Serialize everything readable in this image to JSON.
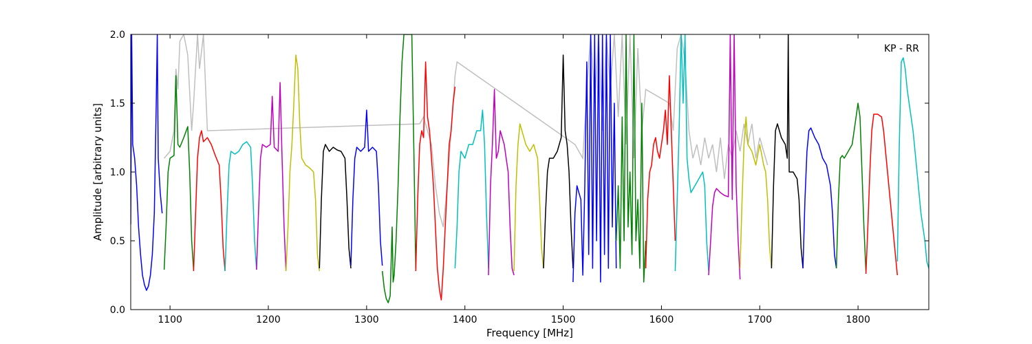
{
  "chart_data": {
    "type": "line",
    "title": "",
    "xlabel": "Frequency [MHz]",
    "ylabel": "Amplitude [arbitrary units]",
    "annotation": "KP - RR",
    "xlim": [
      1060,
      1872
    ],
    "ylim": [
      0.0,
      2.0
    ],
    "xticks": [
      1100,
      1200,
      1300,
      1400,
      1500,
      1600,
      1700,
      1800
    ],
    "yticks": [
      0.0,
      0.5,
      1.0,
      1.5,
      2.0
    ],
    "xtick_labels": [
      "1100",
      "1200",
      "1300",
      "1400",
      "1500",
      "1600",
      "1700",
      "1800"
    ],
    "ytick_labels": [
      "0.0",
      "0.5",
      "1.0",
      "1.5",
      "2.0"
    ],
    "grid": false,
    "background_series": {
      "color": "#bfbfbf",
      "x": [
        1094,
        1100,
        1104,
        1106,
        1108,
        1110,
        1114,
        1118,
        1122,
        1124,
        1128,
        1130,
        1134,
        1138,
        1354,
        1358,
        1362,
        1366,
        1370,
        1374,
        1378,
        1382,
        1386,
        1390,
        1392,
        1512,
        1516,
        1520,
        1524,
        1528,
        1532,
        1536,
        1540,
        1544,
        1548,
        1552,
        1556,
        1560,
        1564,
        1568,
        1572,
        1576,
        1580,
        1584,
        1608,
        1612,
        1616,
        1620,
        1624,
        1628,
        1632,
        1636,
        1640,
        1644,
        1648,
        1652,
        1656,
        1660,
        1664,
        1668,
        1672,
        1676,
        1680,
        1684,
        1688,
        1692,
        1696,
        1700,
        1704,
        1708
      ],
      "y": [
        1.1,
        1.15,
        1.3,
        1.75,
        1.6,
        1.95,
        2.0,
        1.85,
        1.3,
        1.5,
        2.0,
        1.75,
        2.0,
        1.3,
        1.35,
        1.4,
        1.3,
        1.2,
        0.9,
        0.7,
        0.6,
        0.9,
        1.3,
        1.7,
        1.8,
        1.2,
        1.15,
        1.1,
        1.6,
        2.0,
        1.5,
        2.0,
        1.3,
        2.0,
        1.6,
        2.0,
        1.4,
        2.0,
        1.2,
        2.0,
        1.1,
        1.9,
        1.3,
        1.6,
        1.5,
        1.3,
        1.9,
        2.0,
        1.8,
        1.3,
        1.1,
        1.2,
        1.05,
        1.25,
        1.1,
        1.2,
        1.0,
        1.25,
        0.95,
        1.2,
        1.1,
        1.3,
        1.15,
        1.35,
        1.2,
        1.35,
        1.1,
        1.25,
        1.15,
        1.05
      ]
    },
    "series": [
      {
        "color": "#0000ff",
        "x": [
          1060,
          1061,
          1062,
          1064,
          1066,
          1068,
          1070,
          1072,
          1074,
          1076,
          1078,
          1080,
          1082,
          1084,
          1086,
          1087,
          1088,
          1090,
          1092
        ],
        "y": [
          0.62,
          2.0,
          1.2,
          1.1,
          0.9,
          0.6,
          0.4,
          0.25,
          0.18,
          0.14,
          0.17,
          0.25,
          0.4,
          0.7,
          1.5,
          2.0,
          1.1,
          0.85,
          0.7
        ]
      },
      {
        "color": "#008000",
        "x": [
          1094,
          1096,
          1098,
          1100,
          1104,
          1106,
          1108,
          1110,
          1114,
          1118,
          1120,
          1122,
          1124
        ],
        "y": [
          0.29,
          0.6,
          1.0,
          1.1,
          1.12,
          1.7,
          1.2,
          1.18,
          1.25,
          1.33,
          1.0,
          0.5,
          0.29
        ]
      },
      {
        "color": "#ff0000",
        "x": [
          1124,
          1126,
          1128,
          1130,
          1132,
          1134,
          1138,
          1142,
          1146,
          1150,
          1152,
          1154,
          1156
        ],
        "y": [
          0.28,
          0.7,
          1.1,
          1.25,
          1.3,
          1.22,
          1.25,
          1.2,
          1.12,
          1.05,
          0.8,
          0.45,
          0.28
        ]
      },
      {
        "color": "#00bfbf",
        "x": [
          1156,
          1158,
          1160,
          1162,
          1166,
          1170,
          1174,
          1178,
          1182,
          1184,
          1186,
          1188
        ],
        "y": [
          0.28,
          0.7,
          1.05,
          1.15,
          1.13,
          1.15,
          1.2,
          1.22,
          1.18,
          0.9,
          0.5,
          0.29
        ]
      },
      {
        "color": "#bf00bf",
        "x": [
          1188,
          1190,
          1192,
          1194,
          1198,
          1202,
          1204,
          1206,
          1210,
          1212,
          1214,
          1216,
          1218
        ],
        "y": [
          0.29,
          0.7,
          1.1,
          1.2,
          1.18,
          1.2,
          1.55,
          1.18,
          1.15,
          1.65,
          1.1,
          0.6,
          0.28
        ]
      },
      {
        "color": "#bfbf00",
        "x": [
          1218,
          1220,
          1222,
          1224,
          1226,
          1228,
          1230,
          1232,
          1234,
          1238,
          1242,
          1246,
          1248,
          1250,
          1252
        ],
        "y": [
          0.28,
          0.6,
          1.0,
          1.2,
          1.5,
          1.85,
          1.75,
          1.35,
          1.1,
          1.05,
          1.03,
          1.0,
          0.8,
          0.4,
          0.28
        ]
      },
      {
        "color": "#000000",
        "x": [
          1252,
          1254,
          1256,
          1258,
          1262,
          1266,
          1270,
          1274,
          1278,
          1280,
          1282,
          1284
        ],
        "y": [
          0.3,
          0.8,
          1.15,
          1.2,
          1.15,
          1.18,
          1.16,
          1.15,
          1.1,
          0.8,
          0.45,
          0.3
        ]
      },
      {
        "color": "#0000ff",
        "x": [
          1284,
          1286,
          1288,
          1290,
          1294,
          1298,
          1300,
          1302,
          1306,
          1310,
          1312,
          1314,
          1316
        ],
        "y": [
          0.32,
          0.8,
          1.1,
          1.18,
          1.15,
          1.18,
          1.45,
          1.15,
          1.18,
          1.15,
          0.9,
          0.5,
          0.32
        ]
      },
      {
        "color": "#008000",
        "x": [
          1316,
          1318,
          1320,
          1322,
          1324,
          1326,
          1327,
          1328,
          1330,
          1332,
          1334,
          1336,
          1338,
          1340,
          1342,
          1344,
          1346,
          1348,
          1350
        ],
        "y": [
          0.28,
          0.15,
          0.08,
          0.05,
          0.1,
          0.6,
          0.2,
          0.25,
          0.5,
          0.9,
          1.4,
          1.8,
          2.0,
          2.0,
          2.0,
          2.0,
          2.0,
          1.2,
          0.3
        ]
      },
      {
        "color": "#ff0000",
        "x": [
          1350,
          1352,
          1354,
          1356,
          1358,
          1360,
          1362,
          1364,
          1366,
          1368,
          1370,
          1372,
          1374,
          1376,
          1378,
          1380,
          1382,
          1384,
          1386,
          1388,
          1390
        ],
        "y": [
          0.28,
          0.8,
          1.2,
          1.3,
          1.25,
          1.8,
          1.4,
          1.3,
          1.1,
          0.9,
          0.6,
          0.3,
          0.15,
          0.07,
          0.3,
          0.6,
          0.9,
          1.2,
          1.3,
          1.5,
          1.62
        ]
      },
      {
        "color": "#00bfbf",
        "x": [
          1390,
          1392,
          1394,
          1396,
          1400,
          1404,
          1408,
          1412,
          1416,
          1418,
          1420,
          1422,
          1424
        ],
        "y": [
          0.3,
          0.6,
          1.0,
          1.15,
          1.1,
          1.2,
          1.2,
          1.3,
          1.3,
          1.45,
          1.2,
          0.7,
          0.3
        ]
      },
      {
        "color": "#bf00bf",
        "x": [
          1424,
          1426,
          1428,
          1430,
          1432,
          1434,
          1436,
          1438,
          1440,
          1442,
          1444,
          1446,
          1448,
          1450
        ],
        "y": [
          0.25,
          0.9,
          1.2,
          1.6,
          1.1,
          1.15,
          1.3,
          1.25,
          1.2,
          1.1,
          1.0,
          0.6,
          0.3,
          0.25
        ]
      },
      {
        "color": "#bfbf00",
        "x": [
          1450,
          1452,
          1454,
          1456,
          1458,
          1462,
          1466,
          1470,
          1474,
          1476,
          1478,
          1480
        ],
        "y": [
          0.28,
          0.9,
          1.2,
          1.35,
          1.3,
          1.2,
          1.15,
          1.2,
          1.1,
          0.8,
          0.45,
          0.3
        ]
      },
      {
        "color": "#000000",
        "x": [
          1480,
          1482,
          1484,
          1486,
          1490,
          1494,
          1498,
          1500,
          1502,
          1504,
          1506,
          1508,
          1510
        ],
        "y": [
          0.3,
          0.7,
          1.0,
          1.1,
          1.1,
          1.15,
          1.25,
          1.85,
          1.3,
          1.2,
          1.0,
          0.6,
          0.3
        ]
      },
      {
        "color": "#0000ff",
        "x": [
          1510,
          1512,
          1514,
          1516,
          1518,
          1520,
          1522,
          1524,
          1526,
          1528,
          1530,
          1532,
          1534,
          1536,
          1538,
          1540,
          1542,
          1544,
          1546,
          1548,
          1550,
          1552,
          1554
        ],
        "y": [
          0.2,
          0.7,
          0.9,
          0.85,
          0.8,
          0.25,
          0.9,
          1.8,
          0.4,
          2.0,
          0.3,
          2.0,
          0.5,
          2.0,
          0.2,
          2.0,
          0.4,
          2.0,
          0.3,
          2.0,
          0.6,
          1.5,
          0.3
        ]
      },
      {
        "color": "#008000",
        "x": [
          1554,
          1556,
          1558,
          1560,
          1562,
          1564,
          1566,
          1568,
          1570,
          1572,
          1574,
          1576,
          1578,
          1580,
          1582,
          1584
        ],
        "y": [
          0.5,
          0.9,
          0.3,
          1.4,
          0.5,
          2.0,
          0.6,
          1.0,
          0.4,
          2.0,
          0.5,
          0.8,
          0.3,
          1.5,
          0.2,
          0.5
        ]
      },
      {
        "color": "#ff0000",
        "x": [
          1584,
          1586,
          1588,
          1590,
          1592,
          1594,
          1596,
          1598,
          1600,
          1602,
          1604,
          1606,
          1608,
          1610,
          1612,
          1614
        ],
        "y": [
          0.3,
          0.8,
          1.0,
          1.05,
          1.2,
          1.25,
          1.15,
          1.1,
          1.2,
          1.3,
          1.45,
          1.2,
          1.7,
          1.3,
          0.9,
          0.5
        ]
      },
      {
        "color": "#00bfbf",
        "x": [
          1614,
          1616,
          1618,
          1620,
          1622,
          1624,
          1626,
          1628,
          1630,
          1634,
          1638,
          1642,
          1644,
          1646,
          1648
        ],
        "y": [
          0.28,
          0.8,
          1.3,
          2.0,
          1.5,
          2.0,
          1.1,
          0.95,
          0.85,
          0.9,
          0.95,
          1.0,
          0.9,
          0.5,
          0.28
        ]
      },
      {
        "color": "#bf00bf",
        "x": [
          1648,
          1650,
          1652,
          1654,
          1656,
          1660,
          1664,
          1668,
          1670,
          1672,
          1674,
          1676,
          1678,
          1680
        ],
        "y": [
          0.25,
          0.5,
          0.75,
          0.85,
          0.88,
          0.85,
          0.83,
          0.82,
          2.0,
          0.8,
          2.0,
          0.9,
          0.5,
          0.22
        ]
      },
      {
        "color": "#bfbf00",
        "x": [
          1680,
          1682,
          1684,
          1686,
          1688,
          1692,
          1696,
          1700,
          1704,
          1706,
          1708,
          1710,
          1712
        ],
        "y": [
          0.3,
          0.8,
          1.2,
          1.4,
          1.2,
          1.15,
          1.05,
          1.2,
          1.05,
          1.0,
          0.8,
          0.45,
          0.3
        ]
      },
      {
        "color": "#000000",
        "x": [
          1712,
          1714,
          1716,
          1718,
          1722,
          1726,
          1728,
          1729,
          1730,
          1734,
          1738,
          1740,
          1742,
          1744
        ],
        "y": [
          0.3,
          0.9,
          1.3,
          1.35,
          1.25,
          1.2,
          1.1,
          2.0,
          1.0,
          1.0,
          0.95,
          0.8,
          0.45,
          0.3
        ]
      },
      {
        "color": "#0000ff",
        "x": [
          1744,
          1746,
          1748,
          1750,
          1752,
          1756,
          1760,
          1764,
          1768,
          1772,
          1774,
          1776,
          1778
        ],
        "y": [
          0.3,
          0.8,
          1.15,
          1.3,
          1.32,
          1.25,
          1.2,
          1.1,
          1.05,
          0.9,
          0.7,
          0.4,
          0.3
        ]
      },
      {
        "color": "#008000",
        "x": [
          1778,
          1780,
          1782,
          1784,
          1786,
          1790,
          1794,
          1798,
          1800,
          1802,
          1804,
          1806,
          1808
        ],
        "y": [
          0.3,
          0.8,
          1.1,
          1.12,
          1.1,
          1.15,
          1.2,
          1.4,
          1.5,
          1.4,
          1.0,
          0.6,
          0.28
        ]
      },
      {
        "color": "#ff0000",
        "x": [
          1808,
          1810,
          1812,
          1814,
          1816,
          1820,
          1824,
          1826,
          1830,
          1834,
          1838,
          1840
        ],
        "y": [
          0.26,
          0.6,
          1.0,
          1.3,
          1.42,
          1.42,
          1.4,
          1.3,
          1.0,
          0.7,
          0.4,
          0.25
        ]
      },
      {
        "color": "#00bfbf",
        "x": [
          1840,
          1842,
          1844,
          1846,
          1848,
          1850,
          1852,
          1856,
          1860,
          1864,
          1868,
          1870,
          1872
        ],
        "y": [
          0.35,
          1.2,
          1.8,
          1.83,
          1.75,
          1.6,
          1.5,
          1.3,
          1.0,
          0.7,
          0.5,
          0.35,
          0.3
        ]
      }
    ]
  }
}
